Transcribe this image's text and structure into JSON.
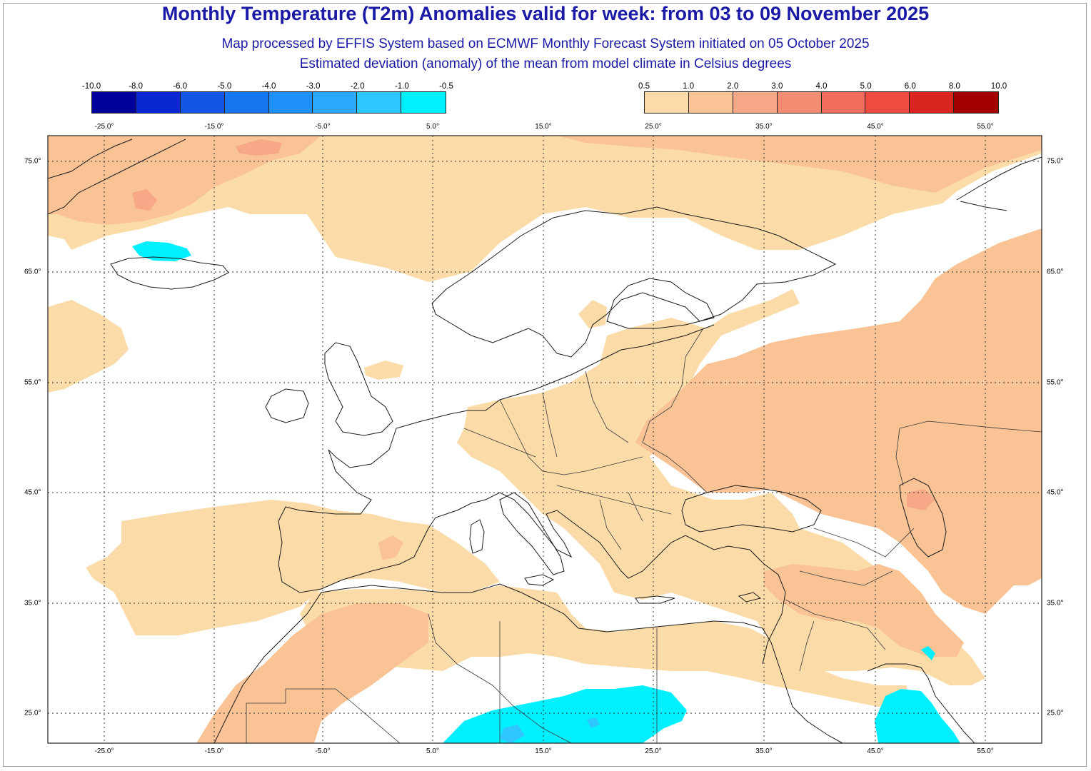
{
  "title": "Monthly Temperature (T2m) Anomalies valid for week: from 03 to 09 November 2025",
  "subtitle1": "Map processed by EFFIS System based on ECMWF Monthly Forecast System initiated on 05 October 2025",
  "subtitle2": "Estimated deviation (anomaly) of the mean from model climate in Celsius degrees",
  "legend_negative": {
    "labels": [
      "-10.0",
      "-8.0",
      "-6.0",
      "-5.0",
      "-4.0",
      "-3.0",
      "-2.0",
      "-1.0",
      "-0.5"
    ],
    "colors": [
      "#00009a",
      "#0a28d2",
      "#1256e6",
      "#1676f0",
      "#1e90f8",
      "#2aa8fc",
      "#30c6ff",
      "#00f0ff"
    ]
  },
  "legend_positive": {
    "labels": [
      "0.5",
      "1.0",
      "2.0",
      "3.0",
      "4.0",
      "5.0",
      "6.0",
      "8.0",
      "10.0"
    ],
    "colors": [
      "#fbdca8",
      "#f9c395",
      "#f7a987",
      "#f48d71",
      "#f26e5c",
      "#ee4c3f",
      "#d8261f",
      "#a30000"
    ]
  },
  "lon_labels_top": [
    "-25.0°",
    "-15.0°",
    "-5.0°",
    "5.0°",
    "15.0°",
    "25.0°",
    "35.0°",
    "45.0°",
    "55.0°"
  ],
  "lon_labels_bottom": [
    "-25.0°",
    "-15.0°",
    "-5.0°",
    "5.0°",
    "15.0°",
    "25.0°",
    "35.0°",
    "45.0°",
    "55.0°"
  ],
  "lat_labels_left": [
    "75.0°",
    "65.0°",
    "55.0°",
    "45.0°",
    "35.0°",
    "25.0°"
  ],
  "lat_labels_right": [
    "75.0°",
    "65.0°",
    "55.0°",
    "45.0°",
    "35.0°",
    "25.0°"
  ],
  "map": {
    "region_lon_range": [
      -30,
      60
    ],
    "region_lat_range": [
      22,
      77
    ],
    "grid": "dotted",
    "anomaly_fill_colors": {
      "a05_10": "#fbdca8",
      "a10_20": "#f9c395",
      "a20_30": "#f7a987",
      "neg": "#00f0ff",
      "neg_deep": "#30c6ff"
    }
  }
}
